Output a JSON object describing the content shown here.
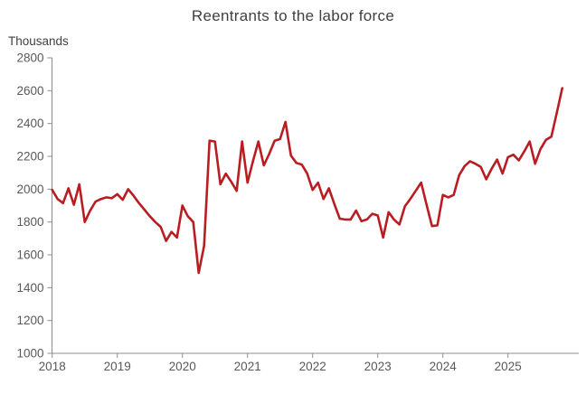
{
  "chart": {
    "title": "Reentrants to the labor force",
    "units_label": "Thousands"
  },
  "chart_data": {
    "type": "line",
    "title": "Reentrants to the labor force",
    "ylabel": "Thousands",
    "xlabel": "",
    "grid": false,
    "legend": "none",
    "ylim": [
      1000,
      2800
    ],
    "y_ticks": [
      1000,
      1200,
      1400,
      1600,
      1800,
      2000,
      2200,
      2400,
      2600,
      2800
    ],
    "x_tick_labels": [
      "2018",
      "2019",
      "2020",
      "2021",
      "2022",
      "2023",
      "2024",
      "2025"
    ],
    "line_color": "#b91d22",
    "axis_color": "#8c8c8c",
    "tick_text_color": "#595959",
    "series": [
      {
        "name": "Reentrants to the labor force",
        "unit": "thousands",
        "x": [
          "2018-01",
          "2018-02",
          "2018-03",
          "2018-04",
          "2018-05",
          "2018-06",
          "2018-07",
          "2018-08",
          "2018-09",
          "2018-10",
          "2018-11",
          "2018-12",
          "2019-01",
          "2019-02",
          "2019-03",
          "2019-04",
          "2019-05",
          "2019-06",
          "2019-07",
          "2019-08",
          "2019-09",
          "2019-10",
          "2019-11",
          "2019-12",
          "2020-01",
          "2020-02",
          "2020-03",
          "2020-04",
          "2020-05",
          "2020-06",
          "2020-07",
          "2020-08",
          "2020-09",
          "2020-10",
          "2020-11",
          "2020-12",
          "2021-01",
          "2021-02",
          "2021-03",
          "2021-04",
          "2021-05",
          "2021-06",
          "2021-07",
          "2021-08",
          "2021-09",
          "2021-10",
          "2021-11",
          "2021-12",
          "2022-01",
          "2022-02",
          "2022-03",
          "2022-04",
          "2022-05",
          "2022-06",
          "2022-07",
          "2022-08",
          "2022-09",
          "2022-10",
          "2022-11",
          "2022-12",
          "2023-01",
          "2023-02",
          "2023-03",
          "2023-04",
          "2023-05",
          "2023-06",
          "2023-07",
          "2023-08",
          "2023-09",
          "2023-10",
          "2023-11",
          "2023-12",
          "2024-01",
          "2024-02",
          "2024-03",
          "2024-04",
          "2024-05",
          "2024-06",
          "2024-07",
          "2024-08",
          "2024-09",
          "2024-10",
          "2024-11",
          "2024-12",
          "2025-01",
          "2025-02",
          "2025-03",
          "2025-04",
          "2025-05",
          "2025-06",
          "2025-07",
          "2025-08",
          "2025-09",
          "2025-10",
          "2025-11"
        ],
        "values": [
          1995,
          1940,
          1915,
          2005,
          1905,
          2030,
          1800,
          1870,
          1925,
          1940,
          1950,
          1945,
          1970,
          1935,
          2000,
          1960,
          1915,
          1875,
          1835,
          1800,
          1770,
          1685,
          1740,
          1705,
          1900,
          1835,
          1800,
          1490,
          1655,
          2295,
          2290,
          2030,
          2095,
          2045,
          1990,
          2290,
          2040,
          2170,
          2290,
          2145,
          2215,
          2295,
          2305,
          2410,
          2205,
          2160,
          2150,
          2095,
          1995,
          2040,
          1940,
          2005,
          1910,
          1820,
          1815,
          1815,
          1870,
          1805,
          1815,
          1850,
          1840,
          1705,
          1860,
          1815,
          1785,
          1895,
          1940,
          1990,
          2040,
          1905,
          1775,
          1780,
          1965,
          1950,
          1965,
          2085,
          2140,
          2170,
          2155,
          2135,
          2060,
          2125,
          2180,
          2095,
          2195,
          2210,
          2175,
          2230,
          2290,
          2155,
          2245,
          2300,
          2320,
          2465,
          2615
        ]
      }
    ]
  }
}
